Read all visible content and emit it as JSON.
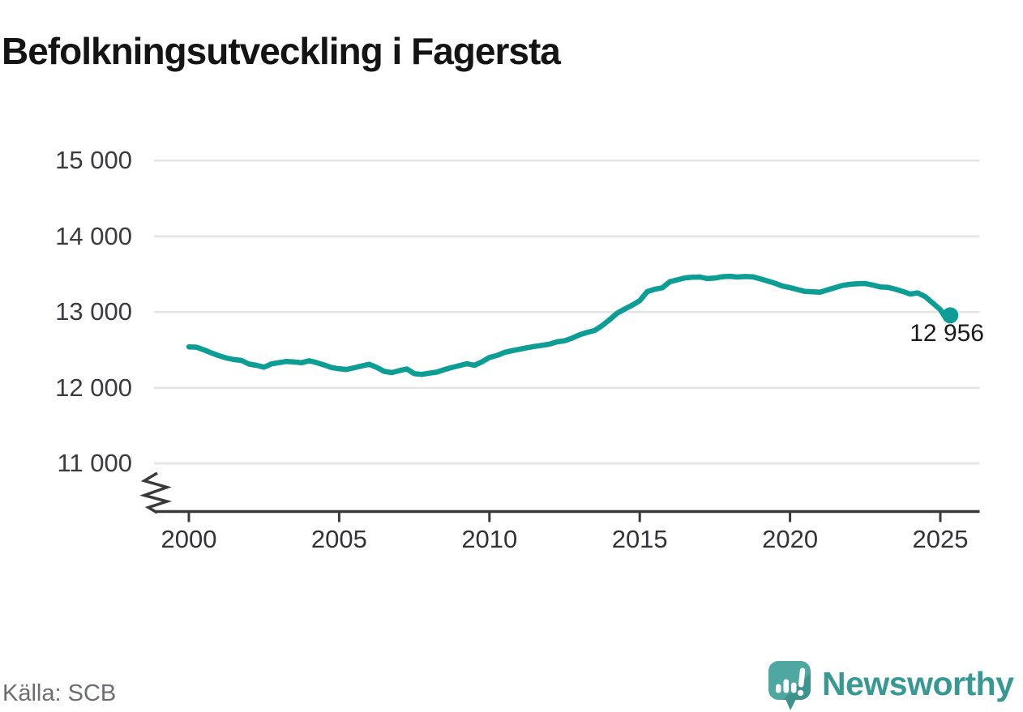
{
  "title": "Befolkningsutveckling i Fagersta",
  "source": {
    "label": "Källa: SCB"
  },
  "brand": {
    "name": "Newsworthy",
    "logo_icon": "newsworthy-speech-bubble-bar-chart-icon",
    "wordmark_color": "#389892",
    "bubble_color": "#4FA7A1",
    "bubble_shade_color": "#3E938D"
  },
  "chart_data": {
    "type": "line",
    "title": "Befolkningsutveckling i Fagersta",
    "xlabel": "",
    "ylabel": "",
    "x_unit": "year",
    "xlim": [
      1998.8,
      2026.3
    ],
    "ylim": [
      10400,
      15300
    ],
    "y_axis_break": true,
    "grid": "horizontal",
    "legend": "none",
    "line_color": "#0C9E94",
    "grid_color": "#E4E4E4",
    "axis_color": "#3A3A3A",
    "yticks": [
      {
        "value": 15000,
        "label": "15 000"
      },
      {
        "value": 14000,
        "label": "14 000"
      },
      {
        "value": 13000,
        "label": "13 000"
      },
      {
        "value": 12000,
        "label": "12 000"
      },
      {
        "value": 11000,
        "label": "11 000"
      }
    ],
    "xticks": [
      {
        "value": 2000,
        "label": "2000"
      },
      {
        "value": 2005,
        "label": "2005"
      },
      {
        "value": 2010,
        "label": "2010"
      },
      {
        "value": 2015,
        "label": "2015"
      },
      {
        "value": 2020,
        "label": "2020"
      },
      {
        "value": 2025,
        "label": "2025"
      }
    ],
    "points": [
      [
        2000.0,
        12540
      ],
      [
        2000.25,
        12536
      ],
      [
        2000.5,
        12500
      ],
      [
        2000.75,
        12460
      ],
      [
        2001.0,
        12422
      ],
      [
        2001.25,
        12392
      ],
      [
        2001.5,
        12372
      ],
      [
        2001.75,
        12360
      ],
      [
        2002.0,
        12312
      ],
      [
        2002.25,
        12296
      ],
      [
        2002.5,
        12272
      ],
      [
        2002.75,
        12316
      ],
      [
        2003.0,
        12332
      ],
      [
        2003.25,
        12348
      ],
      [
        2003.5,
        12340
      ],
      [
        2003.75,
        12330
      ],
      [
        2004.0,
        12356
      ],
      [
        2004.25,
        12332
      ],
      [
        2004.5,
        12300
      ],
      [
        2004.75,
        12266
      ],
      [
        2005.0,
        12250
      ],
      [
        2005.25,
        12242
      ],
      [
        2005.5,
        12264
      ],
      [
        2005.75,
        12288
      ],
      [
        2006.0,
        12310
      ],
      [
        2006.25,
        12268
      ],
      [
        2006.5,
        12216
      ],
      [
        2006.75,
        12200
      ],
      [
        2007.0,
        12226
      ],
      [
        2007.25,
        12248
      ],
      [
        2007.5,
        12186
      ],
      [
        2007.75,
        12176
      ],
      [
        2008.0,
        12192
      ],
      [
        2008.25,
        12206
      ],
      [
        2008.5,
        12240
      ],
      [
        2008.75,
        12268
      ],
      [
        2009.0,
        12292
      ],
      [
        2009.25,
        12318
      ],
      [
        2009.5,
        12296
      ],
      [
        2009.75,
        12342
      ],
      [
        2010.0,
        12400
      ],
      [
        2010.25,
        12426
      ],
      [
        2010.5,
        12466
      ],
      [
        2010.75,
        12490
      ],
      [
        2011.0,
        12508
      ],
      [
        2011.25,
        12528
      ],
      [
        2011.5,
        12545
      ],
      [
        2011.75,
        12560
      ],
      [
        2012.0,
        12576
      ],
      [
        2012.25,
        12606
      ],
      [
        2012.5,
        12620
      ],
      [
        2012.75,
        12656
      ],
      [
        2013.0,
        12700
      ],
      [
        2013.25,
        12730
      ],
      [
        2013.5,
        12756
      ],
      [
        2013.75,
        12820
      ],
      [
        2014.0,
        12900
      ],
      [
        2014.25,
        12985
      ],
      [
        2014.5,
        13040
      ],
      [
        2014.75,
        13090
      ],
      [
        2015.0,
        13150
      ],
      [
        2015.25,
        13270
      ],
      [
        2015.5,
        13300
      ],
      [
        2015.75,
        13320
      ],
      [
        2016.0,
        13400
      ],
      [
        2016.25,
        13425
      ],
      [
        2016.5,
        13450
      ],
      [
        2016.75,
        13460
      ],
      [
        2017.0,
        13462
      ],
      [
        2017.25,
        13442
      ],
      [
        2017.5,
        13448
      ],
      [
        2017.75,
        13466
      ],
      [
        2018.0,
        13472
      ],
      [
        2018.25,
        13462
      ],
      [
        2018.5,
        13468
      ],
      [
        2018.75,
        13465
      ],
      [
        2019.0,
        13440
      ],
      [
        2019.25,
        13410
      ],
      [
        2019.5,
        13380
      ],
      [
        2019.75,
        13342
      ],
      [
        2020.0,
        13322
      ],
      [
        2020.25,
        13296
      ],
      [
        2020.5,
        13272
      ],
      [
        2020.75,
        13266
      ],
      [
        2021.0,
        13262
      ],
      [
        2021.25,
        13292
      ],
      [
        2021.5,
        13322
      ],
      [
        2021.75,
        13352
      ],
      [
        2022.0,
        13366
      ],
      [
        2022.25,
        13374
      ],
      [
        2022.5,
        13376
      ],
      [
        2022.75,
        13356
      ],
      [
        2023.0,
        13332
      ],
      [
        2023.25,
        13326
      ],
      [
        2023.5,
        13302
      ],
      [
        2023.75,
        13272
      ],
      [
        2024.0,
        13236
      ],
      [
        2024.25,
        13252
      ],
      [
        2024.5,
        13202
      ],
      [
        2024.75,
        13118
      ],
      [
        2025.0,
        13032
      ],
      [
        2025.13,
        12950
      ],
      [
        2025.22,
        12908
      ],
      [
        2025.33,
        12956
      ]
    ],
    "end_point": {
      "x": 2025.33,
      "value": 12956,
      "label": "12 956"
    }
  }
}
